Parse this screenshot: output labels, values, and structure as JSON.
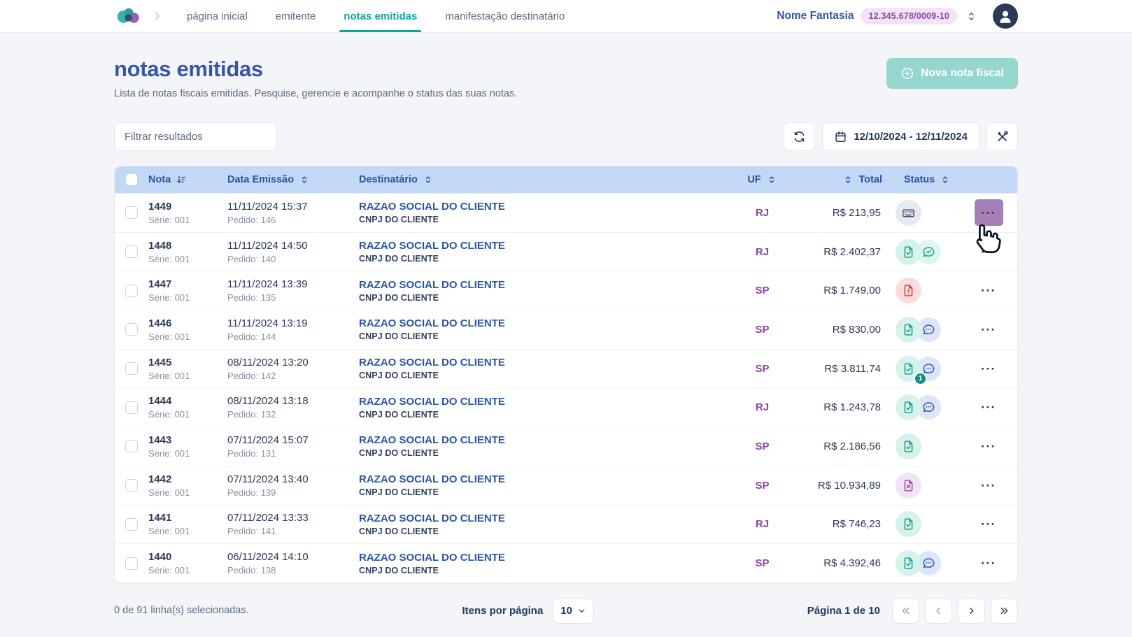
{
  "header": {
    "nav": [
      {
        "label": "página inicial",
        "active": false
      },
      {
        "label": "emitente",
        "active": false
      },
      {
        "label": "notas emitidas",
        "active": true
      },
      {
        "label": "manifestação destinatário",
        "active": false
      }
    ],
    "company_name": "Nome Fantasia",
    "company_cnpj": "12.345.678/0009-10",
    "logo_icon": "cloud-logo-icon",
    "company_switcher_icon": "chevron-up-down-icon",
    "avatar_icon": "user-avatar-icon"
  },
  "page": {
    "title": "notas emitidas",
    "subtitle": "Lista de notas fiscais emitidas. Pesquise, gerencie e acompanhe o status das suas notas.",
    "new_invoice_button": "Nova nota fiscal",
    "new_invoice_icon": "plus-circle-icon"
  },
  "filters": {
    "search_placeholder": "Filtrar resultados",
    "refresh_icon": "refresh-icon",
    "calendar_icon": "calendar-icon",
    "date_range": "12/10/2024 - 12/11/2024",
    "tools_icon": "tools-icon"
  },
  "table": {
    "columns": [
      {
        "label": "Nota",
        "sort_icon": "sort-desc-icon"
      },
      {
        "label": "Data Emissão",
        "sort_icon": "sort-updown-icon"
      },
      {
        "label": "Destinatário",
        "sort_icon": "sort-updown-icon"
      },
      {
        "label": "UF",
        "sort_icon": "sort-updown-icon"
      },
      {
        "label": "Total",
        "sort_icon": "sort-updown-icon"
      },
      {
        "label": "Status",
        "sort_icon": "sort-updown-icon"
      }
    ],
    "row_actions_icon": "more-options-icon",
    "rows": [
      {
        "nota": "1449",
        "serie": "Série: 001",
        "data": "11/11/2024 15:37",
        "pedido": "Pedido: 146",
        "destinatario": "RAZAO SOCIAL DO CLIENTE",
        "cnpj": "CNPJ DO CLIENTE",
        "uf": "RJ",
        "total": "R$ 213,95",
        "status_icons": [
          "keyboard-icon"
        ],
        "actions_highlighted": true
      },
      {
        "nota": "1448",
        "serie": "Série: 001",
        "data": "11/11/2024 14:50",
        "pedido": "Pedido: 140",
        "destinatario": "RAZAO SOCIAL DO CLIENTE",
        "cnpj": "CNPJ DO CLIENTE",
        "uf": "RJ",
        "total": "R$ 2.402,37",
        "status_icons": [
          "doc-check-icon",
          "chat-check-icon"
        ]
      },
      {
        "nota": "1447",
        "serie": "Série: 001",
        "data": "11/11/2024 13:39",
        "pedido": "Pedido: 135",
        "destinatario": "RAZAO SOCIAL DO CLIENTE",
        "cnpj": "CNPJ DO CLIENTE",
        "uf": "SP",
        "total": "R$ 1.749,00",
        "status_icons": [
          "doc-alert-icon"
        ]
      },
      {
        "nota": "1446",
        "serie": "Série: 001",
        "data": "11/11/2024 13:19",
        "pedido": "Pedido: 144",
        "destinatario": "RAZAO SOCIAL DO CLIENTE",
        "cnpj": "CNPJ DO CLIENTE",
        "uf": "SP",
        "total": "R$ 830,00",
        "status_icons": [
          "doc-check-icon",
          "chat-dots-icon"
        ]
      },
      {
        "nota": "1445",
        "serie": "Série: 001",
        "data": "08/11/2024 13:20",
        "pedido": "Pedido: 142",
        "destinatario": "RAZAO SOCIAL DO CLIENTE",
        "cnpj": "CNPJ DO CLIENTE",
        "uf": "SP",
        "total": "R$ 3.811,74",
        "status_icons": [
          "doc-check-icon",
          "chat-dots-icon"
        ],
        "chat_badge": "1"
      },
      {
        "nota": "1444",
        "serie": "Série: 001",
        "data": "08/11/2024 13:18",
        "pedido": "Pedido: 132",
        "destinatario": "RAZAO SOCIAL DO CLIENTE",
        "cnpj": "CNPJ DO CLIENTE",
        "uf": "RJ",
        "total": "R$ 1.243,78",
        "status_icons": [
          "doc-check-icon",
          "chat-dots-icon"
        ]
      },
      {
        "nota": "1443",
        "serie": "Série: 001",
        "data": "07/11/2024 15:07",
        "pedido": "Pedido: 131",
        "destinatario": "RAZAO SOCIAL DO CLIENTE",
        "cnpj": "CNPJ DO CLIENTE",
        "uf": "SP",
        "total": "R$ 2.186,56",
        "status_icons": [
          "doc-check-icon"
        ]
      },
      {
        "nota": "1442",
        "serie": "Série: 001",
        "data": "07/11/2024 13:40",
        "pedido": "Pedido: 139",
        "destinatario": "RAZAO SOCIAL DO CLIENTE",
        "cnpj": "CNPJ DO CLIENTE",
        "uf": "SP",
        "total": "R$ 10.934,89",
        "status_icons": [
          "doc-cancel-icon"
        ]
      },
      {
        "nota": "1441",
        "serie": "Série: 001",
        "data": "07/11/2024 13:33",
        "pedido": "Pedido: 141",
        "destinatario": "RAZAO SOCIAL DO CLIENTE",
        "cnpj": "CNPJ DO CLIENTE",
        "uf": "RJ",
        "total": "R$ 746,23",
        "status_icons": [
          "doc-check-icon"
        ]
      },
      {
        "nota": "1440",
        "serie": "Série: 001",
        "data": "06/11/2024 14:10",
        "pedido": "Pedido: 138",
        "destinatario": "RAZAO SOCIAL DO CLIENTE",
        "cnpj": "CNPJ DO CLIENTE",
        "uf": "SP",
        "total": "R$ 4.392,46",
        "status_icons": [
          "doc-check-icon",
          "chat-dots-icon"
        ]
      }
    ]
  },
  "footer": {
    "selection_text": "0 de 91 linha(s) selecionadas.",
    "items_per_page_label": "Itens por página",
    "items_per_page_value": "10",
    "page_indicator": "Página 1 de 10",
    "pagination_icons": [
      "first-page-icon",
      "previous-page-icon",
      "next-page-icon",
      "last-page-icon"
    ]
  },
  "colors": {
    "accent_teal": "#12a39a",
    "brand_blue": "#3657a8",
    "link_blue": "#2a55a5",
    "uf_purple": "#8d44a5",
    "table_header_bg": "#c2d8f4",
    "badge_bg": "#f2e4f6",
    "highlight_purple": "#a57fb7",
    "error_red": "#e03131",
    "success_teal": "#0f9b8e"
  }
}
